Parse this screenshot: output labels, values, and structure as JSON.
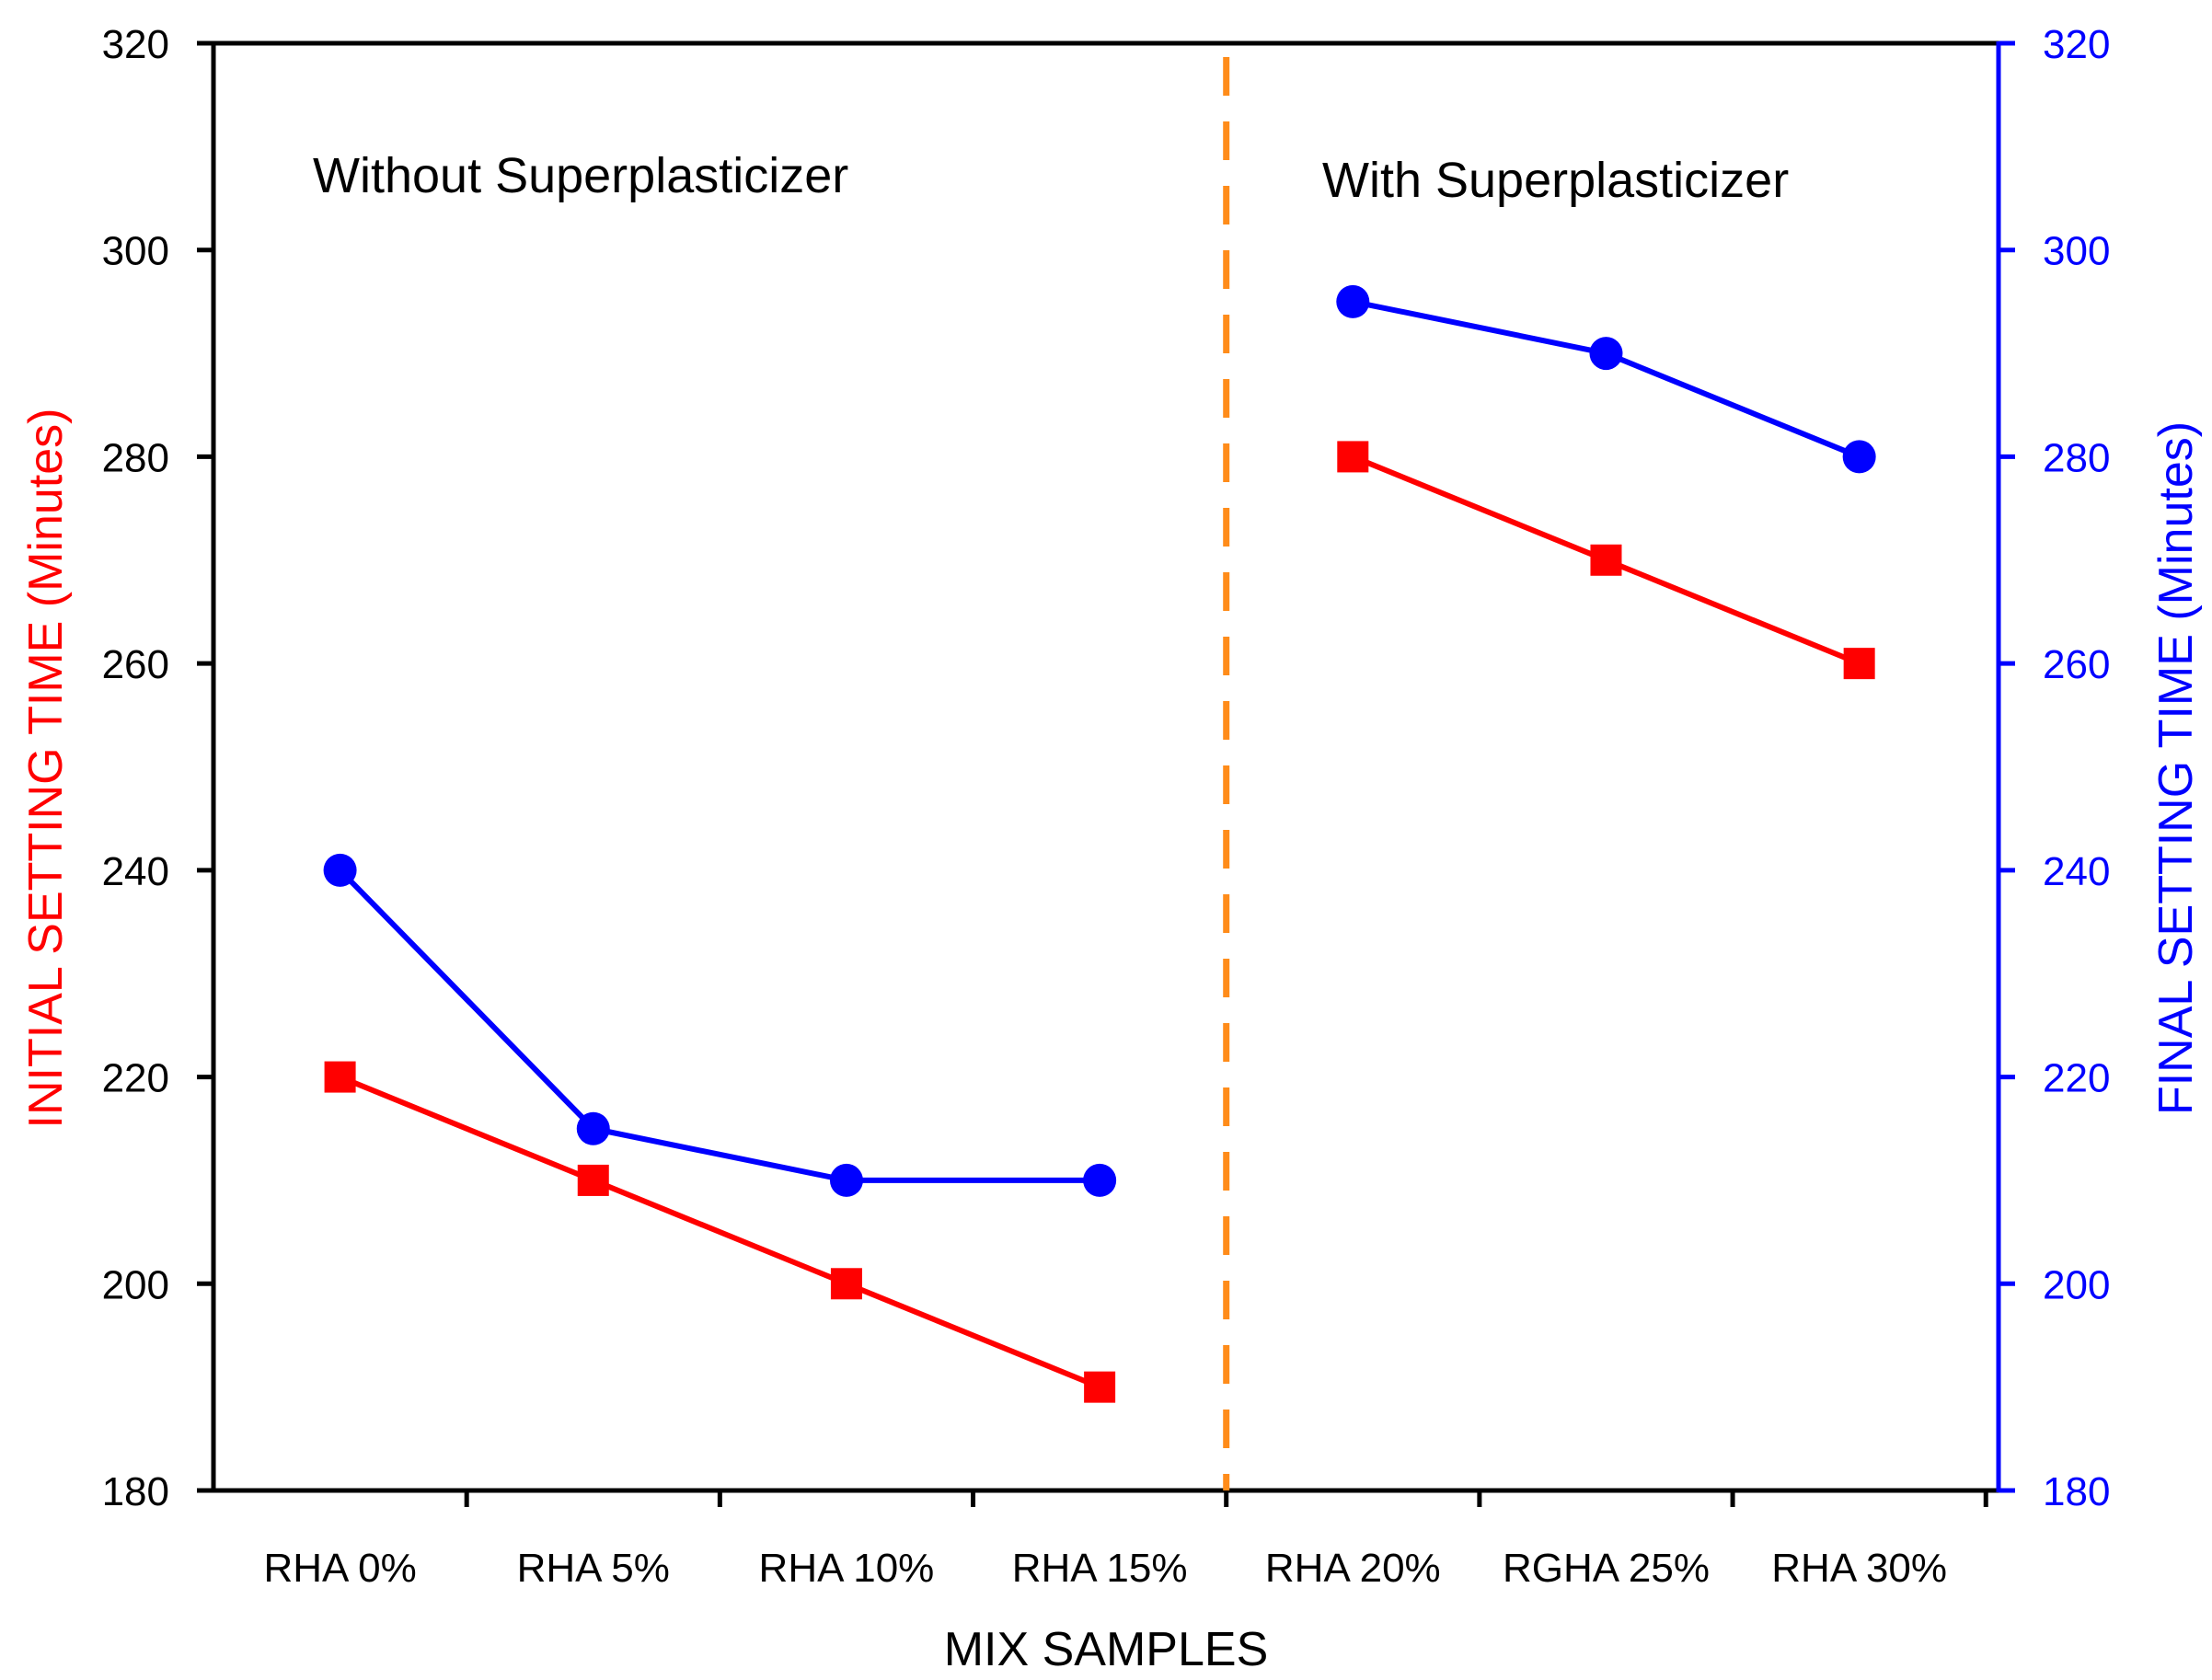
{
  "chart_data": {
    "type": "line",
    "categories": [
      "RHA 0%",
      "RHA 5%",
      "RHA 10%",
      "RHA 15%",
      "RHA 20%",
      "RGHA 25%",
      "RHA 30%"
    ],
    "xlabel": "MIX SAMPLES",
    "ylabel_left": "INITIAL SETTING TIME (Minutes)",
    "ylabel_right": "FINAL SETTING TIME (Minutes)",
    "ylim_left": [
      180,
      320
    ],
    "ylim_right": [
      180,
      320
    ],
    "yticks": [
      180,
      200,
      220,
      240,
      260,
      280,
      300,
      320
    ],
    "yticks_left_text": [
      "180",
      "200",
      "220",
      "240",
      "260",
      "280",
      "300",
      "320"
    ],
    "yticks_right_text": [
      "180",
      "200",
      "220",
      "240",
      "260",
      "280",
      "300",
      "320"
    ],
    "annotations": [
      "Without Superplasticizer",
      "With Superplasticizer"
    ],
    "divider_after_category": "RHA 15%",
    "series": [
      {
        "name": "Initial Setting Time",
        "axis": "left",
        "color": "#ff0000",
        "marker": "square",
        "segments": [
          [
            0,
            1,
            2,
            3
          ],
          [
            4,
            5,
            6
          ]
        ],
        "values": [
          220,
          210,
          200,
          190,
          280,
          270,
          260
        ]
      },
      {
        "name": "Final Setting Time",
        "axis": "right",
        "color": "#0000ff",
        "marker": "circle",
        "segments": [
          [
            0,
            1,
            2,
            3
          ],
          [
            4,
            5,
            6
          ]
        ],
        "values": [
          240,
          215,
          210,
          210,
          295,
          290,
          280
        ]
      }
    ],
    "colors": {
      "left_axis_label": "#ff0000",
      "right_axis": "#0000ff",
      "divider": "#ff8c1a",
      "frame": "#000000"
    }
  }
}
